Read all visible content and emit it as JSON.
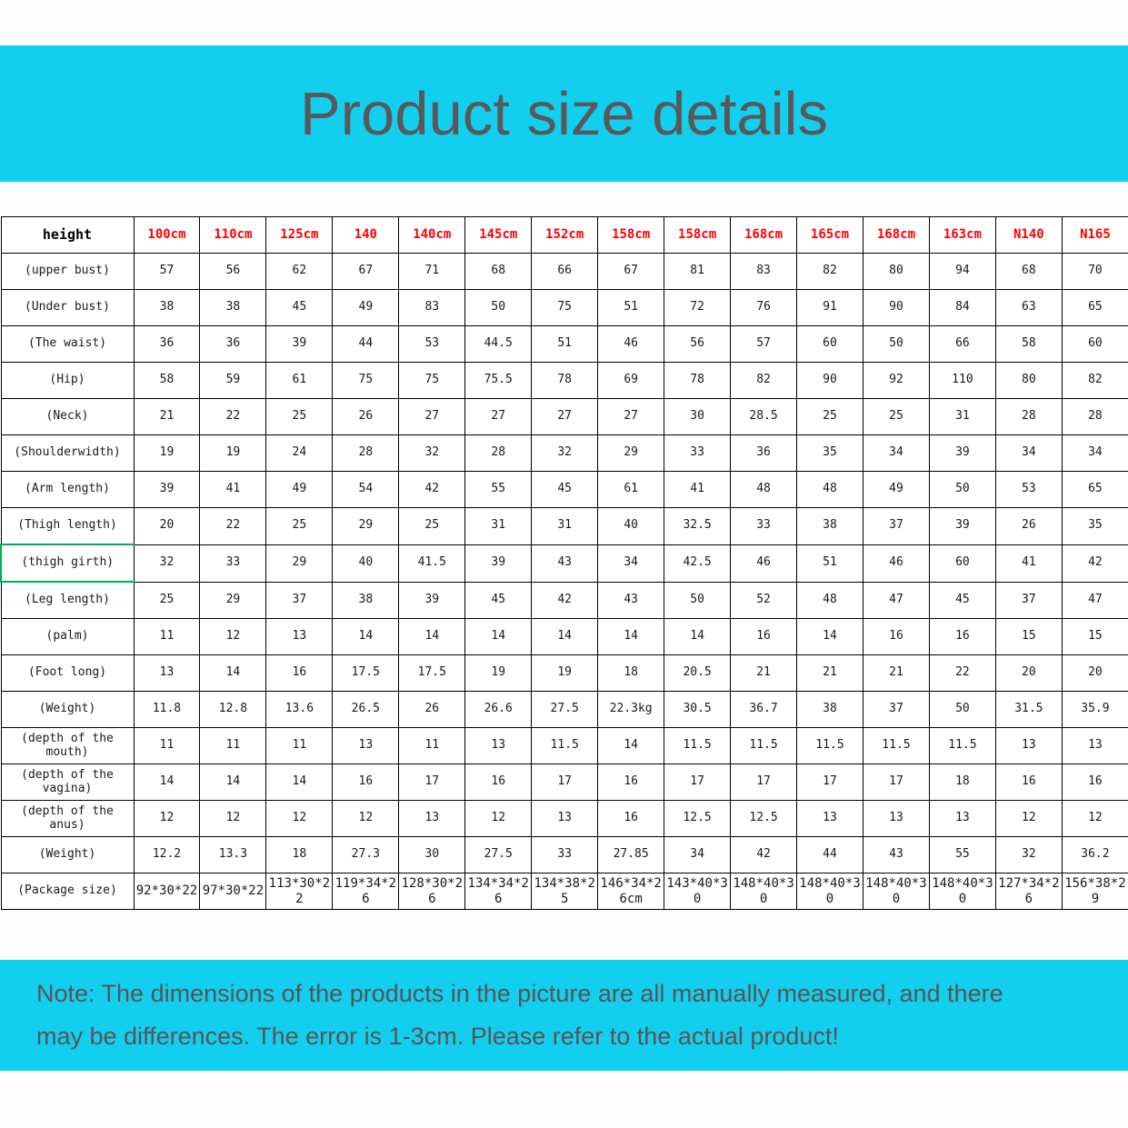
{
  "page": {
    "title": "Product size details",
    "note_line1": "Note: The dimensions of the products in the picture are all manually measured, and there",
    "note_line2": "may be differences. The error is 1-3cm. Please refer to the actual product!"
  },
  "colors": {
    "banner_cyan": "#12cff0",
    "header_red": "#ff0000",
    "title_gray": "#595959",
    "highlight_green": "#00b050",
    "border_black": "#000000"
  },
  "chart_data": {
    "type": "table",
    "corner_header": "height",
    "columns": [
      "100cm",
      "110cm",
      "125cm",
      "140",
      "140cm",
      "145cm",
      "152cm",
      "158cm",
      "158cm",
      "168cm",
      "165cm",
      "168cm",
      "163cm",
      "N140",
      "N165"
    ],
    "highlight_row_index": 8,
    "package_row_index": 17,
    "rows": [
      {
        "label": "(upper bust)",
        "values": [
          "57",
          "56",
          "62",
          "67",
          "71",
          "68",
          "66",
          "67",
          "81",
          "83",
          "82",
          "80",
          "94",
          "68",
          "70"
        ]
      },
      {
        "label": "(Under bust)",
        "values": [
          "38",
          "38",
          "45",
          "49",
          "83",
          "50",
          "75",
          "51",
          "72",
          "76",
          "91",
          "90",
          "84",
          "63",
          "65"
        ]
      },
      {
        "label": "(The waist)",
        "values": [
          "36",
          "36",
          "39",
          "44",
          "53",
          "44.5",
          "51",
          "46",
          "56",
          "57",
          "60",
          "50",
          "66",
          "58",
          "60"
        ]
      },
      {
        "label": "(Hip)",
        "values": [
          "58",
          "59",
          "61",
          "75",
          "75",
          "75.5",
          "78",
          "69",
          "78",
          "82",
          "90",
          "92",
          "110",
          "80",
          "82"
        ]
      },
      {
        "label": "(Neck)",
        "values": [
          "21",
          "22",
          "25",
          "26",
          "27",
          "27",
          "27",
          "27",
          "30",
          "28.5",
          "25",
          "25",
          "31",
          "28",
          "28"
        ]
      },
      {
        "label": "(Shoulderwidth)",
        "values": [
          "19",
          "19",
          "24",
          "28",
          "32",
          "28",
          "32",
          "29",
          "33",
          "36",
          "35",
          "34",
          "39",
          "34",
          "34"
        ]
      },
      {
        "label": "(Arm length)",
        "values": [
          "39",
          "41",
          "49",
          "54",
          "42",
          "55",
          "45",
          "61",
          "41",
          "48",
          "48",
          "49",
          "50",
          "53",
          "65"
        ]
      },
      {
        "label": "(Thigh length)",
        "values": [
          "20",
          "22",
          "25",
          "29",
          "25",
          "31",
          "31",
          "40",
          "32.5",
          "33",
          "38",
          "37",
          "39",
          "26",
          "35"
        ]
      },
      {
        "label": "(thigh girth)",
        "values": [
          "32",
          "33",
          "29",
          "40",
          "41.5",
          "39",
          "43",
          "34",
          "42.5",
          "46",
          "51",
          "46",
          "60",
          "41",
          "42"
        ]
      },
      {
        "label": "(Leg length)",
        "values": [
          "25",
          "29",
          "37",
          "38",
          "39",
          "45",
          "42",
          "43",
          "50",
          "52",
          "48",
          "47",
          "45",
          "37",
          "47"
        ]
      },
      {
        "label": "(palm)",
        "values": [
          "11",
          "12",
          "13",
          "14",
          "14",
          "14",
          "14",
          "14",
          "14",
          "16",
          "14",
          "16",
          "16",
          "15",
          "15"
        ]
      },
      {
        "label": "(Foot long)",
        "values": [
          "13",
          "14",
          "16",
          "17.5",
          "17.5",
          "19",
          "19",
          "18",
          "20.5",
          "21",
          "21",
          "21",
          "22",
          "20",
          "20"
        ]
      },
      {
        "label": "(Weight)",
        "values": [
          "11.8",
          "12.8",
          "13.6",
          "26.5",
          "26",
          "26.6",
          "27.5",
          "22.3kg",
          "30.5",
          "36.7",
          "38",
          "37",
          "50",
          "31.5",
          "35.9"
        ]
      },
      {
        "label": "(depth of the mouth)",
        "values": [
          "11",
          "11",
          "11",
          "13",
          "11",
          "13",
          "11.5",
          "14",
          "11.5",
          "11.5",
          "11.5",
          "11.5",
          "11.5",
          "13",
          "13"
        ]
      },
      {
        "label": "(depth of the vagina)",
        "values": [
          "14",
          "14",
          "14",
          "16",
          "17",
          "16",
          "17",
          "16",
          "17",
          "17",
          "17",
          "17",
          "18",
          "16",
          "16"
        ]
      },
      {
        "label": "(depth of the anus)",
        "values": [
          "12",
          "12",
          "12",
          "12",
          "13",
          "12",
          "13",
          "16",
          "12.5",
          "12.5",
          "13",
          "13",
          "13",
          "12",
          "12"
        ]
      },
      {
        "label": "(Weight)",
        "values": [
          "12.2",
          "13.3",
          "18",
          "27.3",
          "30",
          "27.5",
          "33",
          "27.85",
          "34",
          "42",
          "44",
          "43",
          "55",
          "32",
          "36.2"
        ]
      },
      {
        "label": "(Package size)",
        "values": [
          "92*30*22",
          "97*30*22",
          "113*30*22",
          "119*34*26",
          "128*30*26",
          "134*34*26",
          "134*38*25",
          "146*34*26cm",
          "143*40*30",
          "148*40*30",
          "148*40*30",
          "148*40*30",
          "148*40*30",
          "127*34*26",
          "156*38*29"
        ]
      }
    ]
  }
}
